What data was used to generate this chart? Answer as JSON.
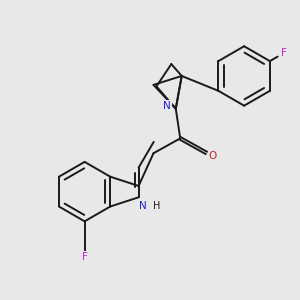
{
  "bg_color": "#e8e8e8",
  "bond_color": "#1a1a1a",
  "N_color": "#2020cc",
  "O_color": "#cc2020",
  "F_color": "#cc20cc",
  "line_width": 1.4,
  "figsize": [
    3.0,
    3.0
  ],
  "dpi": 100,
  "xlim": [
    0,
    10
  ],
  "ylim": [
    0,
    10
  ]
}
